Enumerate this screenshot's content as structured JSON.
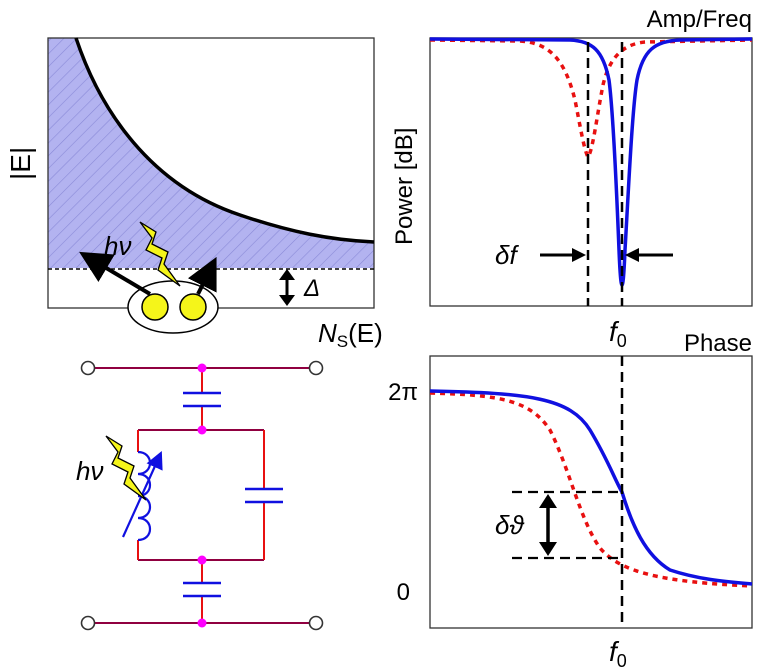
{
  "dos_panel": {
    "y_axis_label": "|E|",
    "x_axis_label_main": "N",
    "x_axis_label_sub": "S",
    "x_axis_label_tail": "(E)",
    "photon_label": "hν",
    "gap_label": "Δ"
  },
  "circuit_panel": {
    "photon_label": "hν"
  },
  "amplitude_panel": {
    "title": "Amp/Freq",
    "y_axis_label": "Power [dB]",
    "shift_label": "δf",
    "freq_label_main": "f",
    "freq_label_sub": "0"
  },
  "phase_panel": {
    "title": "Phase",
    "tick_top": "2π",
    "tick_bottom": "0",
    "shift_label": "δϑ",
    "freq_label_main": "f",
    "freq_label_sub": "0"
  },
  "colors": {
    "fill": "#b3b3f0",
    "solid_curve": "#1010e0",
    "dashed_curve": "#e81010",
    "junction": "#ff00ff",
    "wire": "#900040",
    "bolt": "#f5f51a",
    "capacitor": "#1010e0"
  }
}
